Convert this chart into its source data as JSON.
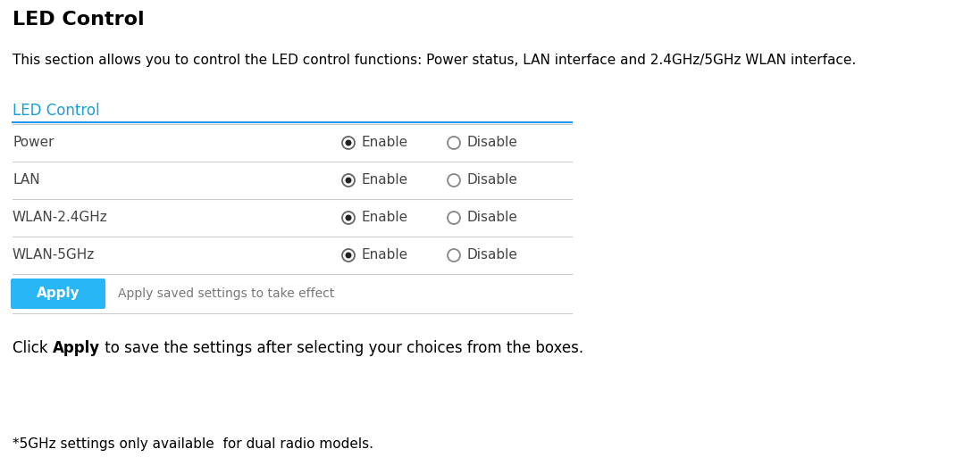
{
  "title": "LED Control",
  "description": "This section allows you to control the LED control functions: Power status, LAN interface and 2.4GHz/5GHz WLAN interface.",
  "section_title": "LED Control",
  "section_title_color": "#1a9dd9",
  "rows": [
    {
      "label": "Power"
    },
    {
      "label": "LAN"
    },
    {
      "label": "WLAN-2.4GHz"
    },
    {
      "label": "WLAN-5GHz"
    }
  ],
  "enable_label": "Enable",
  "disable_label": "Disable",
  "apply_button_text": "Apply",
  "apply_button_color": "#29b6f6",
  "apply_note": "Apply saved settings to take effect",
  "click_note_pre": "Click ",
  "click_note_bold": "Apply",
  "click_note_post": " to save the settings after selecting your choices from the boxes.",
  "footnote": "*5GHz settings only available  for dual radio models.",
  "bg_color": "#ffffff",
  "text_color": "#000000",
  "label_color": "#444444",
  "line_color": "#cccccc",
  "section_line_color": "#2196f3"
}
